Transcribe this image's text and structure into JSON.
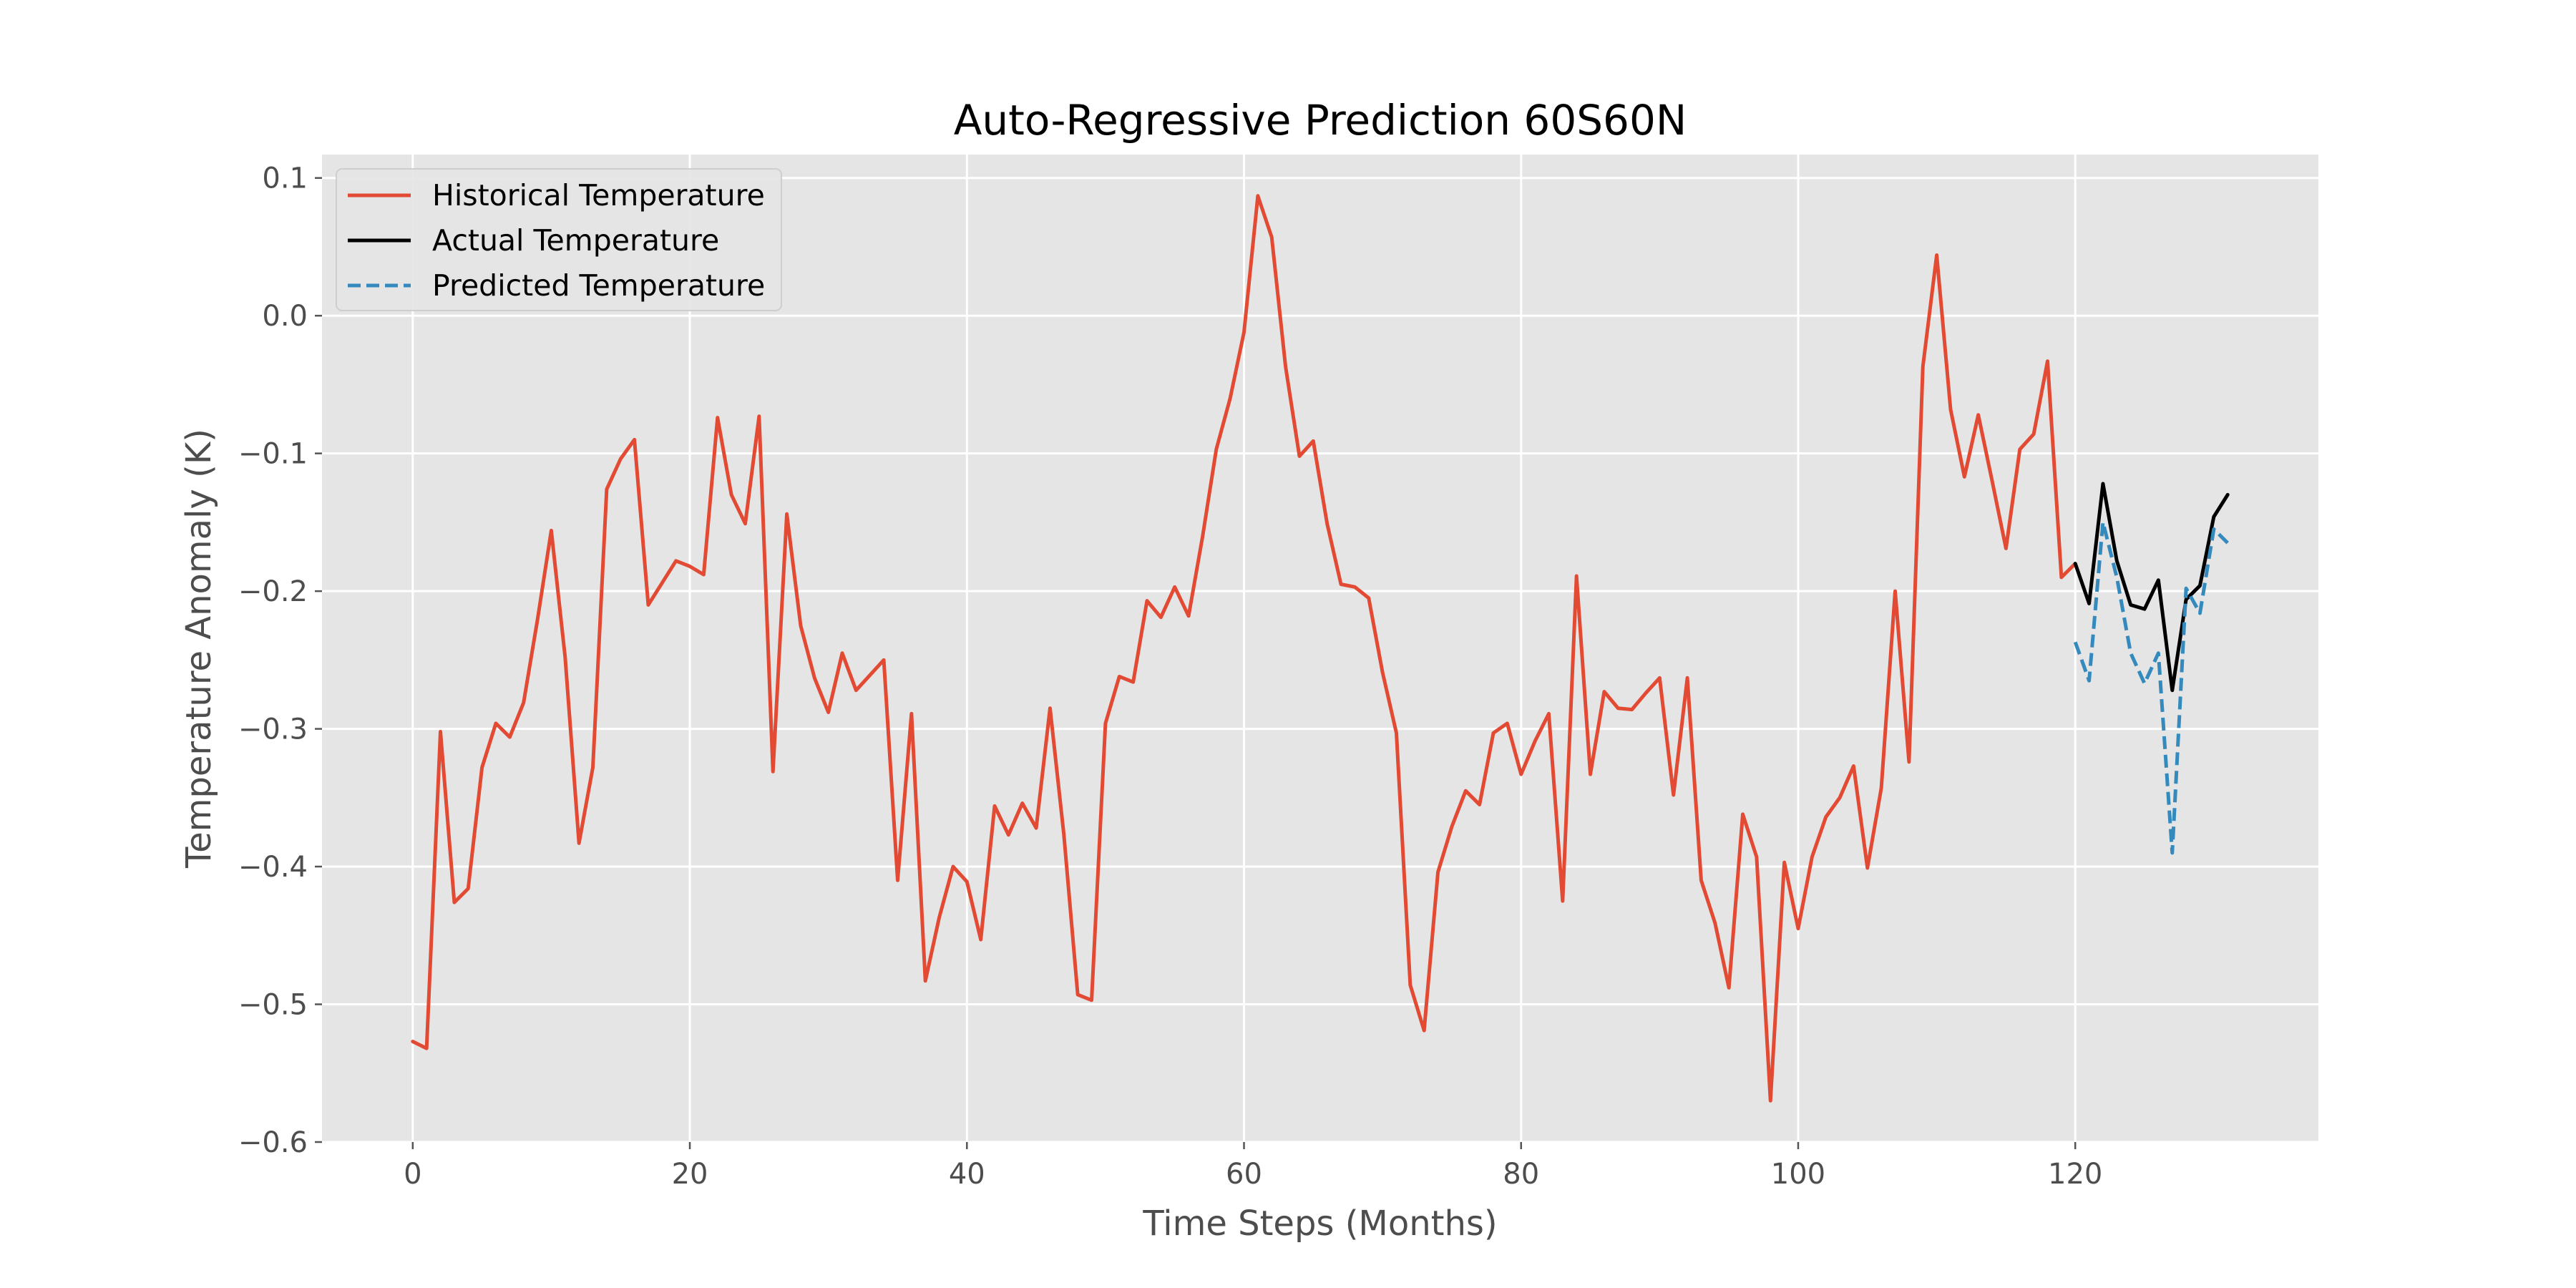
{
  "chart_data": {
    "type": "line",
    "title": "Auto-Regressive Prediction 60S60N",
    "xlabel": "Time Steps (Months)",
    "ylabel": "Temperature Anomaly (K)",
    "xlim": [
      -6.55,
      137.55
    ],
    "ylim": [
      -0.6,
      0.117
    ],
    "x_ticks": [
      0,
      20,
      40,
      60,
      80,
      100,
      120
    ],
    "x_tick_labels": [
      "0",
      "20",
      "40",
      "60",
      "80",
      "100",
      "120"
    ],
    "y_ticks": [
      0.1,
      0.0,
      -0.1,
      -0.2,
      -0.3,
      -0.4,
      -0.5,
      -0.6
    ],
    "y_tick_labels": [
      "0.1",
      "0.0",
      "−0.1",
      "−0.2",
      "−0.3",
      "−0.4",
      "−0.5",
      "−0.6"
    ],
    "grid": true,
    "legend_position": "upper-left",
    "background": "#e5e5e5",
    "series": [
      {
        "name": "Historical Temperature",
        "color": "#e24a33",
        "style": "solid",
        "x_start": 0,
        "values": [
          -0.527,
          -0.532,
          -0.302,
          -0.426,
          -0.416,
          -0.328,
          -0.296,
          -0.306,
          -0.281,
          -0.221,
          -0.156,
          -0.248,
          -0.383,
          -0.328,
          -0.126,
          -0.104,
          -0.09,
          -0.21,
          -0.194,
          -0.178,
          -0.182,
          -0.188,
          -0.074,
          -0.13,
          -0.151,
          -0.073,
          -0.331,
          -0.144,
          -0.225,
          -0.263,
          -0.288,
          -0.245,
          -0.272,
          -0.261,
          -0.25,
          -0.41,
          -0.289,
          -0.483,
          -0.437,
          -0.4,
          -0.411,
          -0.453,
          -0.356,
          -0.377,
          -0.354,
          -0.372,
          -0.285,
          -0.377,
          -0.493,
          -0.497,
          -0.296,
          -0.262,
          -0.266,
          -0.207,
          -0.219,
          -0.197,
          -0.218,
          -0.161,
          -0.097,
          -0.06,
          -0.012,
          0.087,
          0.057,
          -0.037,
          -0.102,
          -0.091,
          -0.151,
          -0.195,
          -0.197,
          -0.205,
          -0.259,
          -0.303,
          -0.486,
          -0.519,
          -0.404,
          -0.371,
          -0.345,
          -0.355,
          -0.303,
          -0.296,
          -0.333,
          -0.309,
          -0.289,
          -0.425,
          -0.189,
          -0.333,
          -0.273,
          -0.285,
          -0.286,
          -0.274,
          -0.263,
          -0.348,
          -0.263,
          -0.41,
          -0.441,
          -0.488,
          -0.362,
          -0.393,
          -0.57,
          -0.397,
          -0.445,
          -0.393,
          -0.364,
          -0.35,
          -0.327,
          -0.401,
          -0.343,
          -0.2,
          -0.324,
          -0.037,
          0.044,
          -0.068,
          -0.117,
          -0.072,
          -0.12,
          -0.169,
          -0.097,
          -0.086,
          -0.033,
          -0.19,
          -0.18
        ]
      },
      {
        "name": "Actual Temperature",
        "color": "#000000",
        "style": "solid",
        "x_start": 120,
        "values": [
          -0.18,
          -0.209,
          -0.122,
          -0.178,
          -0.21,
          -0.213,
          -0.192,
          -0.272,
          -0.206,
          -0.196,
          -0.146,
          -0.13
        ]
      },
      {
        "name": "Predicted Temperature",
        "color": "#348abd",
        "style": "dashed",
        "x_start": 120,
        "values": [
          -0.237,
          -0.265,
          -0.15,
          -0.19,
          -0.245,
          -0.267,
          -0.245,
          -0.39,
          -0.198,
          -0.216,
          -0.155,
          -0.165
        ]
      }
    ]
  }
}
